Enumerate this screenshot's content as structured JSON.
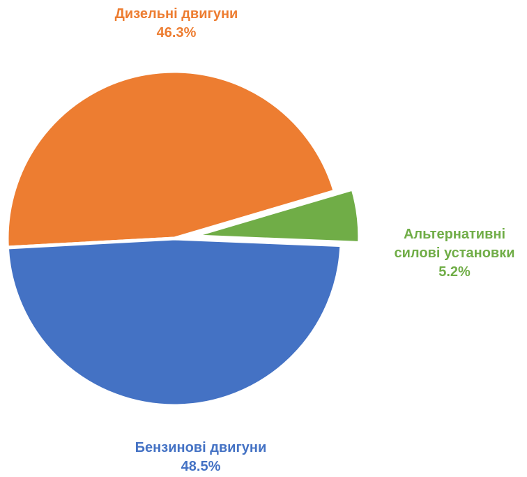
{
  "chart_data": {
    "type": "pie",
    "categories": [
      "Дизельні двигуни",
      "Альтернативні силові установки",
      "Бензинові двигуни"
    ],
    "values": [
      46.3,
      5.2,
      48.5
    ],
    "value_labels": [
      "46.3%",
      "5.2%",
      "48.5%"
    ],
    "label_lines": [
      [
        "Дизельні двигуни"
      ],
      [
        "Альтернативні",
        "силові установки"
      ],
      [
        "Бензинові двигуни"
      ]
    ],
    "colors": [
      "#ED7D31",
      "#70AD47",
      "#4472C4"
    ],
    "exploded": [
      false,
      true,
      false
    ],
    "legend": "none",
    "data_labels": "outside"
  }
}
